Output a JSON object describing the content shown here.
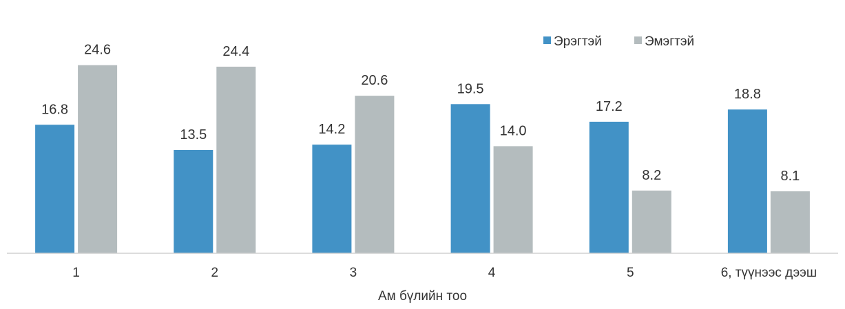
{
  "chart_data": {
    "type": "bar",
    "categories": [
      "1",
      "2",
      "3",
      "4",
      "5",
      "6, түүнээс дээш"
    ],
    "series": [
      {
        "name": "Эрэгтэй",
        "color": "#4292c6",
        "values": [
          16.8,
          13.5,
          14.2,
          19.5,
          17.2,
          18.8
        ]
      },
      {
        "name": "Эмэгтэй",
        "color": "#b4bcbe",
        "values": [
          24.6,
          24.4,
          20.6,
          14.0,
          8.2,
          8.1
        ]
      }
    ],
    "data_labels": [
      [
        "16.8",
        "13.5",
        "14.2",
        "19.5",
        "17.2",
        "18.8"
      ],
      [
        "24.6",
        "24.4",
        "20.6",
        "14.0",
        "8.2",
        "8.1"
      ]
    ],
    "xlabel": "Ам бүлийн тоо",
    "ylabel": "",
    "ylim": [
      0,
      28.8
    ],
    "grid": false,
    "legend_position": "top-right"
  }
}
